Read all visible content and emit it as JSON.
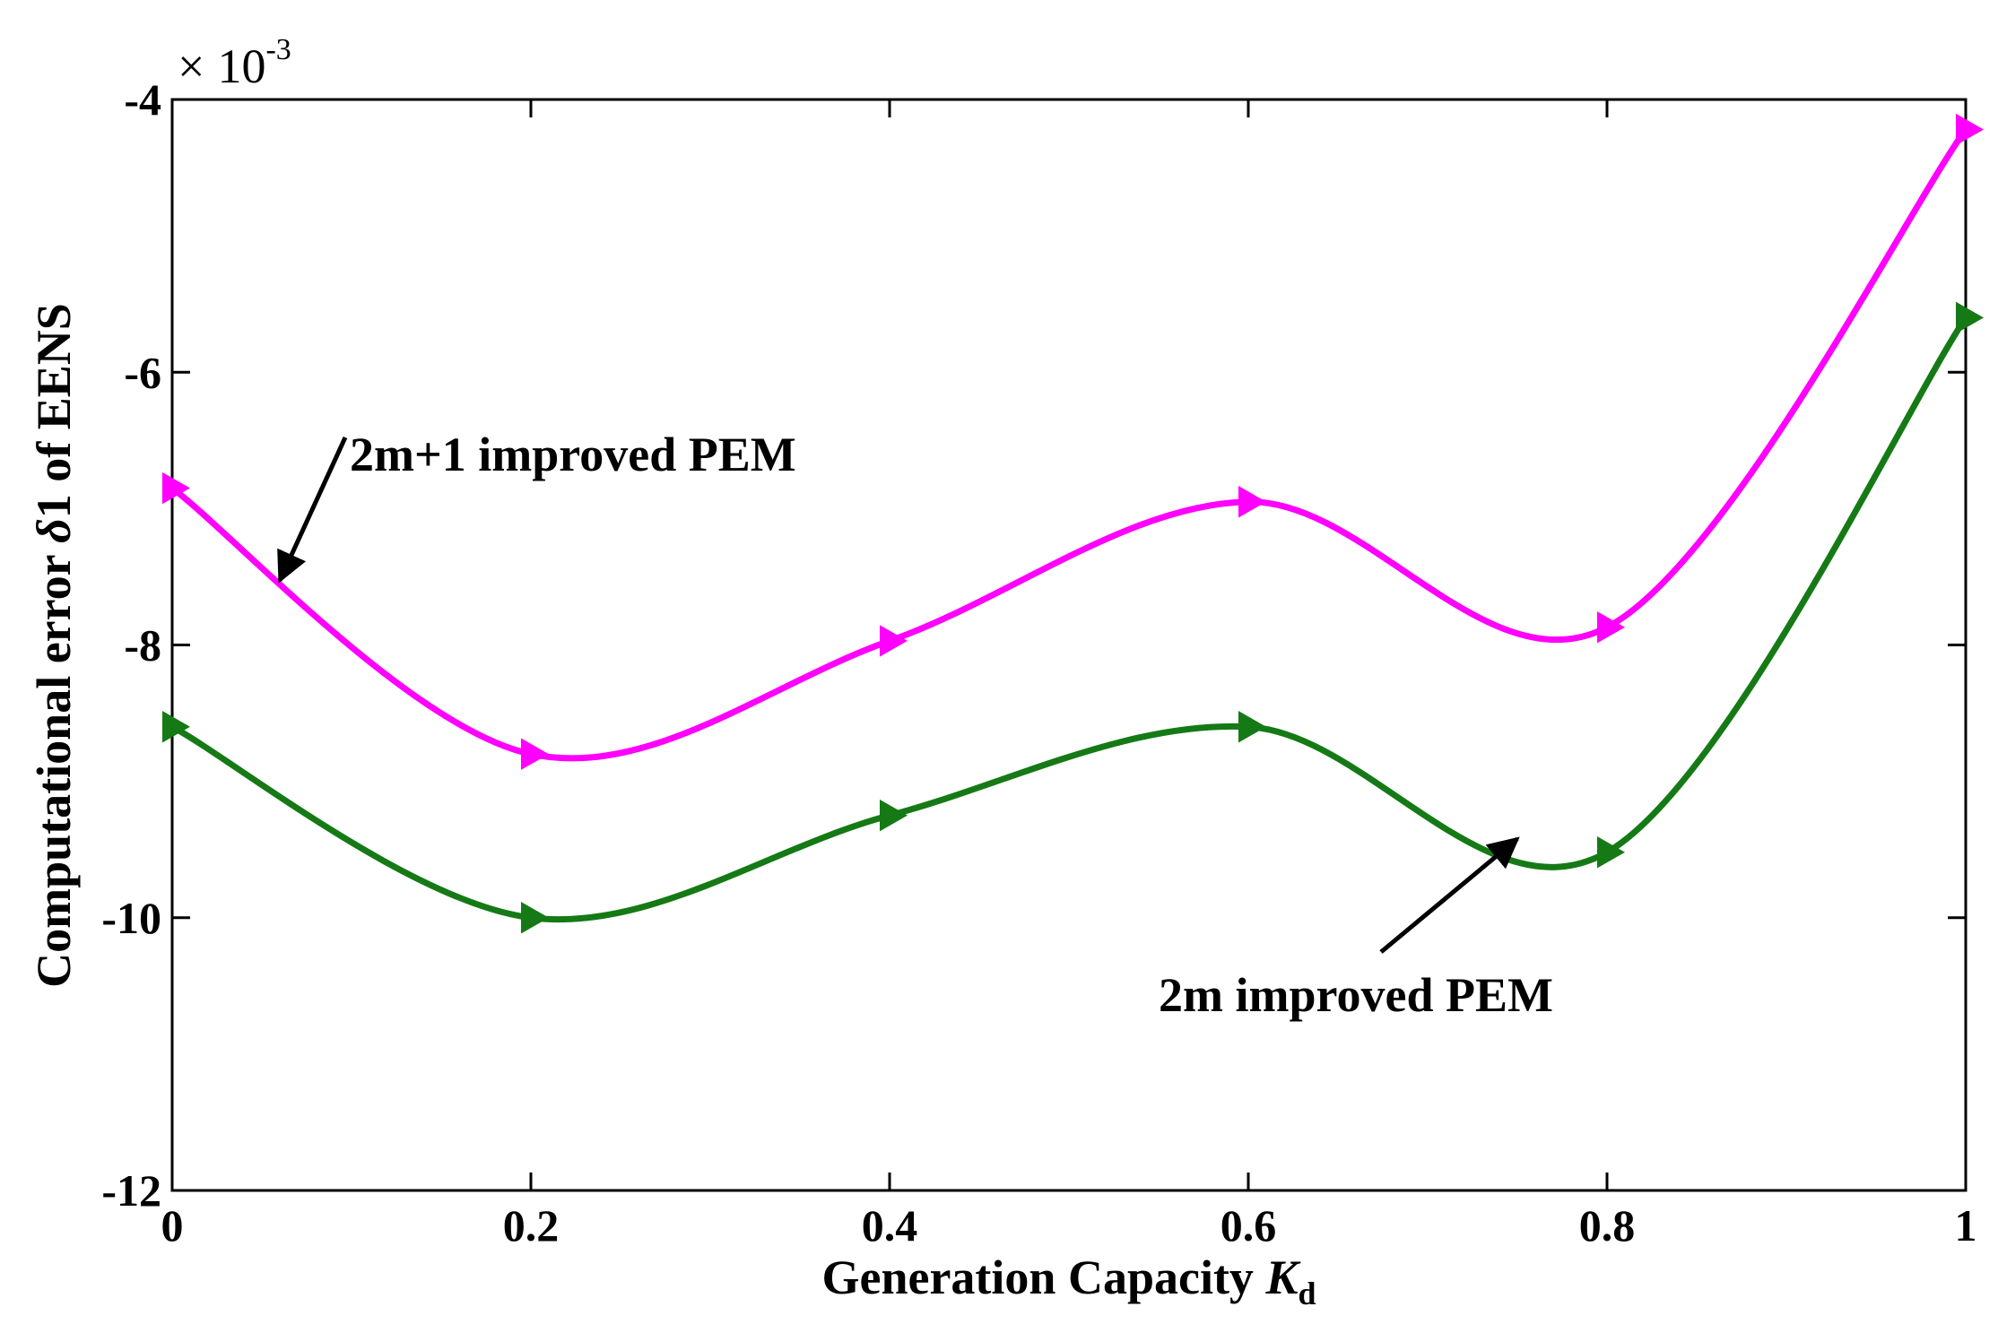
{
  "chart_data": {
    "type": "line",
    "xlabel": {
      "main": "Generation Capacity ",
      "var": "K",
      "sub": "d"
    },
    "ylabel": {
      "before": "Computational error ",
      "var": "δ",
      "after": "1 of EENS"
    },
    "y_multiplier": {
      "times": "×",
      "base": "10",
      "exponent": "-3"
    },
    "xlim": [
      0,
      1
    ],
    "ylim": [
      -12,
      -4
    ],
    "x_ticks": [
      0,
      0.2,
      0.4,
      0.6,
      0.8,
      1
    ],
    "x_tick_labels": [
      "0",
      "0.2",
      "0.4",
      "0.6",
      "0.8",
      "1"
    ],
    "y_ticks": [
      -12,
      -10,
      -8,
      -6,
      -4
    ],
    "y_tick_labels": [
      "-12",
      "-10",
      "-8",
      "-6",
      "-4"
    ],
    "grid": false,
    "x": [
      0,
      0.2,
      0.4,
      0.6,
      0.8,
      1
    ],
    "series": [
      {
        "name": "2m+1 improved PEM",
        "color": "#ff00ff",
        "marker": "triangle-right",
        "values": [
          -6.85,
          -8.8,
          -7.97,
          -6.95,
          -7.87,
          -4.22
        ]
      },
      {
        "name": "2m improved PEM",
        "color": "#157a15",
        "marker": "triangle-right",
        "values": [
          -8.6,
          -10.0,
          -9.25,
          -8.6,
          -9.52,
          -5.6
        ]
      }
    ],
    "annotations": [
      {
        "text": "2m+1 improved PEM",
        "series": 0,
        "arrow_to_x": 0.06
      },
      {
        "text": "2m improved PEM",
        "series": 1,
        "arrow_to_x": 0.75
      }
    ]
  }
}
